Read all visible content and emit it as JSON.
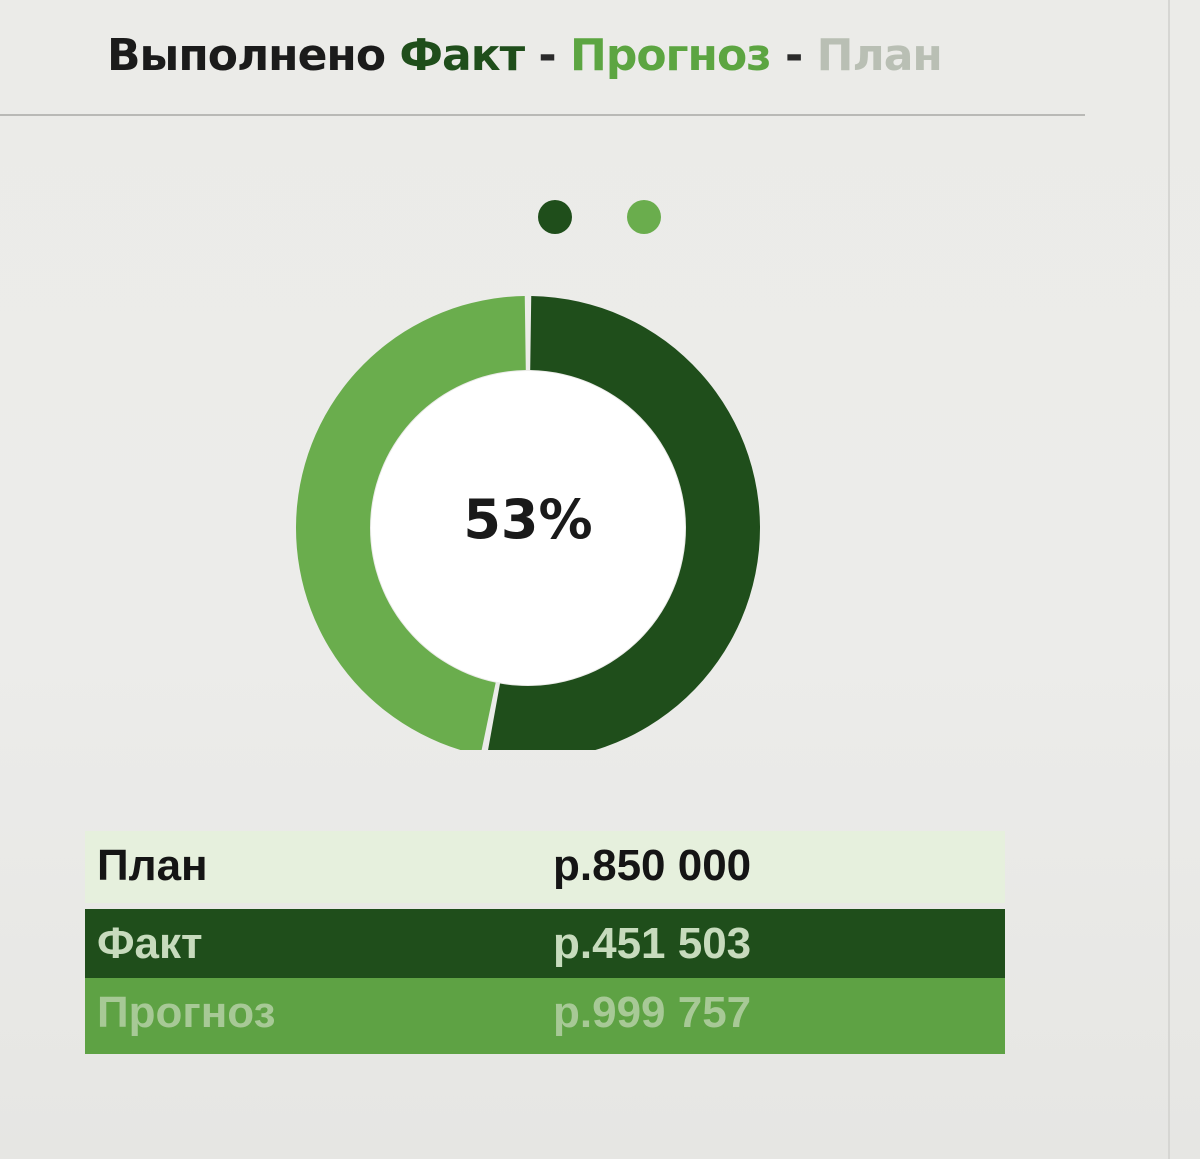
{
  "title": {
    "prefix": "Выполнено",
    "fact": "Факт",
    "sep1": " - ",
    "forecast": "Прогноз",
    "sep2": " - ",
    "plan": "План"
  },
  "colors": {
    "fact": "#1f4e1b",
    "forecast": "#6aad4d",
    "plan": "#b9bfb4"
  },
  "chart_data": {
    "type": "pie",
    "donut": true,
    "center_label": "53%",
    "slices": [
      {
        "name": "Факт",
        "value": 451503,
        "color": "#1f4e1b"
      },
      {
        "name": "Прогноз",
        "value": 399497,
        "color": "#6aad4d"
      }
    ],
    "legend": {
      "placement": "top-center",
      "entries": [
        {
          "color": "#1f4e1b"
        },
        {
          "color": "#6aad4d"
        }
      ]
    }
  },
  "table": {
    "rows": [
      {
        "label": "План",
        "value": "р.850 000"
      },
      {
        "label": "Факт",
        "value": "р.451 503"
      },
      {
        "label": "Прогноз",
        "value": "р.999 757"
      }
    ]
  }
}
